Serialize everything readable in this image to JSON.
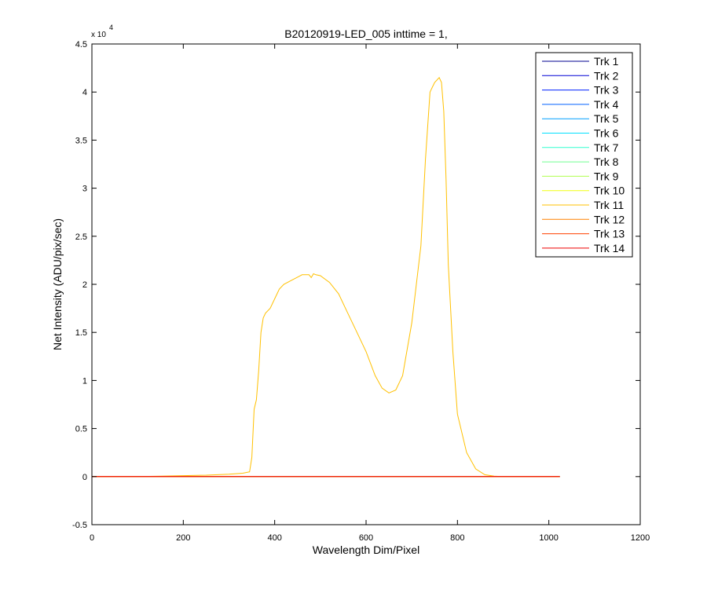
{
  "chart_data": {
    "type": "line",
    "title": "B20120919-LED_005 inttime = 1,",
    "xlabel": "Wavelength Dim/Pixel",
    "ylabel": "Net Intensity (ADU/pix/sec)",
    "xlim": [
      0,
      1200
    ],
    "ylim": [
      -5000,
      45000
    ],
    "x_ticks": [
      0,
      200,
      400,
      600,
      800,
      1000,
      1200
    ],
    "x_tick_labels": [
      "0",
      "200",
      "400",
      "600",
      "800",
      "1000",
      "1200"
    ],
    "y_ticks": [
      -5000,
      0,
      5000,
      10000,
      15000,
      20000,
      25000,
      30000,
      35000,
      40000,
      45000
    ],
    "y_tick_labels": [
      "-0.5",
      "0",
      "0.5",
      "1",
      "1.5",
      "2",
      "2.5",
      "3",
      "3.5",
      "4",
      "4.5"
    ],
    "y_exponent_label": "x 10",
    "y_exponent_power": "4",
    "grid": false,
    "legend_position": "top-right",
    "series": [
      {
        "name": "Trk 1",
        "color": "#00008F",
        "x": [
          0,
          1024
        ],
        "y": [
          0,
          0
        ]
      },
      {
        "name": "Trk 2",
        "color": "#0000D6",
        "x": [
          0,
          1024
        ],
        "y": [
          0,
          0
        ]
      },
      {
        "name": "Trk 3",
        "color": "#0020FF",
        "x": [
          0,
          1024
        ],
        "y": [
          0,
          0
        ]
      },
      {
        "name": "Trk 4",
        "color": "#0060FF",
        "x": [
          0,
          1024
        ],
        "y": [
          0,
          0
        ]
      },
      {
        "name": "Trk 5",
        "color": "#00A0FF",
        "x": [
          0,
          1024
        ],
        "y": [
          0,
          0
        ]
      },
      {
        "name": "Trk 6",
        "color": "#00E0FF",
        "x": [
          0,
          1024
        ],
        "y": [
          0,
          0
        ]
      },
      {
        "name": "Trk 7",
        "color": "#30FFD0",
        "x": [
          0,
          1024
        ],
        "y": [
          0,
          0
        ]
      },
      {
        "name": "Trk 8",
        "color": "#70FF90",
        "x": [
          0,
          1024
        ],
        "y": [
          0,
          0
        ]
      },
      {
        "name": "Trk 9",
        "color": "#B0FF50",
        "x": [
          0,
          1024
        ],
        "y": [
          0,
          0
        ]
      },
      {
        "name": "Trk 10",
        "color": "#F0FF10",
        "x": [
          0,
          1024
        ],
        "y": [
          0,
          0
        ]
      },
      {
        "name": "Trk 11",
        "color": "#FFC000",
        "x": [
          0,
          100,
          150,
          200,
          250,
          300,
          330,
          345,
          350,
          355,
          360,
          365,
          370,
          375,
          380,
          390,
          400,
          410,
          420,
          440,
          460,
          475,
          480,
          485,
          490,
          500,
          520,
          540,
          560,
          580,
          600,
          620,
          635,
          650,
          665,
          680,
          700,
          710,
          720,
          730,
          740,
          745,
          750,
          760,
          765,
          770,
          775,
          780,
          790,
          800,
          820,
          840,
          860,
          880,
          900,
          1024
        ],
        "y": [
          0,
          0,
          50,
          100,
          150,
          250,
          350,
          500,
          2000,
          7000,
          8000,
          11000,
          15000,
          16500,
          17000,
          17500,
          18500,
          19500,
          20000,
          20500,
          21000,
          21000,
          20700,
          21100,
          21000,
          20900,
          20200,
          19000,
          17000,
          15000,
          13000,
          10500,
          9200,
          8700,
          9000,
          10500,
          16000,
          20000,
          24000,
          33000,
          40000,
          40500,
          41000,
          41500,
          41000,
          38000,
          31000,
          22000,
          13000,
          6500,
          2500,
          800,
          200,
          50,
          0,
          0
        ]
      },
      {
        "name": "Trk 12",
        "color": "#FF8000",
        "x": [
          0,
          1024
        ],
        "y": [
          0,
          0
        ]
      },
      {
        "name": "Trk 13",
        "color": "#FF4000",
        "x": [
          0,
          1024
        ],
        "y": [
          0,
          0
        ]
      },
      {
        "name": "Trk 14",
        "color": "#EE0000",
        "x": [
          0,
          1024
        ],
        "y": [
          0,
          0
        ]
      }
    ]
  }
}
